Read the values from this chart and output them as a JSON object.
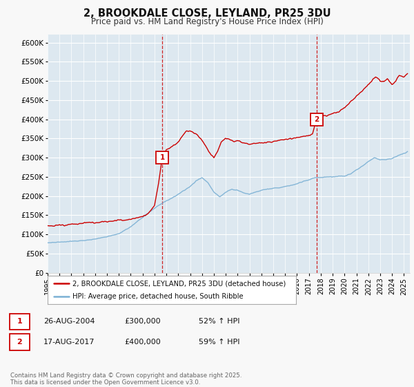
{
  "title": "2, BROOKDALE CLOSE, LEYLAND, PR25 3DU",
  "subtitle": "Price paid vs. HM Land Registry's House Price Index (HPI)",
  "background_color": "#f8f8f8",
  "plot_bg_color": "#dde8f0",
  "ylim": [
    0,
    620000
  ],
  "yticks": [
    0,
    50000,
    100000,
    150000,
    200000,
    250000,
    300000,
    350000,
    400000,
    450000,
    500000,
    550000,
    600000
  ],
  "ytick_labels": [
    "£0",
    "£50K",
    "£100K",
    "£150K",
    "£200K",
    "£250K",
    "£300K",
    "£350K",
    "£400K",
    "£450K",
    "£500K",
    "£550K",
    "£600K"
  ],
  "sale1_date_num": 2004.65,
  "sale1_price": 300000,
  "sale1_label": "1",
  "sale1_date_str": "26-AUG-2004",
  "sale1_pct": "52% ↑ HPI",
  "sale2_date_num": 2017.63,
  "sale2_price": 400000,
  "sale2_label": "2",
  "sale2_date_str": "17-AUG-2017",
  "sale2_pct": "59% ↑ HPI",
  "red_color": "#cc0000",
  "blue_color": "#7ab0d4",
  "legend_label_red": "2, BROOKDALE CLOSE, LEYLAND, PR25 3DU (detached house)",
  "legend_label_blue": "HPI: Average price, detached house, South Ribble",
  "footer": "Contains HM Land Registry data © Crown copyright and database right 2025.\nThis data is licensed under the Open Government Licence v3.0.",
  "xstart": 1995.0,
  "xend": 2025.5
}
